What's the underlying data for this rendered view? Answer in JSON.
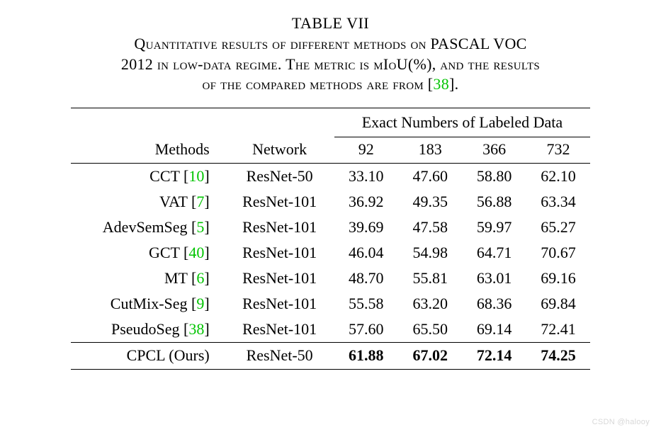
{
  "table_label": "TABLE VII",
  "caption_line1": "Quantitative results of different methods on PASCAL VOC",
  "caption_line2a": "2012 in low-data regime. The metric is mIoU(%), and the results",
  "caption_line3a": "of the compared methods are from [",
  "caption_cite": "38",
  "caption_line3b": "].",
  "group_header": "Exact Numbers of Labeled Data",
  "col_methods": "Methods",
  "col_network": "Network",
  "col_92": "92",
  "col_183": "183",
  "col_366": "366",
  "col_732": "732",
  "rows": [
    {
      "m1": "CCT [",
      "c": "10",
      "m2": "]",
      "net": "ResNet-50",
      "v1": "33.10",
      "v2": "47.60",
      "v3": "58.80",
      "v4": "62.10"
    },
    {
      "m1": "VAT [",
      "c": "7",
      "m2": "]",
      "net": "ResNet-101",
      "v1": "36.92",
      "v2": "49.35",
      "v3": "56.88",
      "v4": "63.34"
    },
    {
      "m1": "AdevSemSeg [",
      "c": "5",
      "m2": "]",
      "net": "ResNet-101",
      "v1": "39.69",
      "v2": "47.58",
      "v3": "59.97",
      "v4": "65.27"
    },
    {
      "m1": "GCT [",
      "c": "40",
      "m2": "]",
      "net": "ResNet-101",
      "v1": "46.04",
      "v2": "54.98",
      "v3": "64.71",
      "v4": "70.67"
    },
    {
      "m1": "MT [",
      "c": "6",
      "m2": "]",
      "net": "ResNet-101",
      "v1": "48.70",
      "v2": "55.81",
      "v3": "63.01",
      "v4": "69.16"
    },
    {
      "m1": "CutMix-Seg [",
      "c": "9",
      "m2": "]",
      "net": "ResNet-101",
      "v1": "55.58",
      "v2": "63.20",
      "v3": "68.36",
      "v4": "69.84"
    },
    {
      "m1": "PseudoSeg [",
      "c": "38",
      "m2": "]",
      "net": "ResNet-101",
      "v1": "57.60",
      "v2": "65.50",
      "v3": "69.14",
      "v4": "72.41"
    }
  ],
  "ours": {
    "m": "CPCL (Ours)",
    "net": "ResNet-50",
    "v1": "61.88",
    "v2": "67.02",
    "v3": "72.14",
    "v4": "74.25"
  },
  "watermark": "CSDN @halooy",
  "style": {
    "cite_color": "#00c400",
    "text_color": "#000000",
    "background_color": "#ffffff",
    "font_family": "Times New Roman",
    "base_fontsize": 22,
    "top_rule_width": 1.6,
    "mid_rule_width": 1.0,
    "table_width_pct": 86
  }
}
